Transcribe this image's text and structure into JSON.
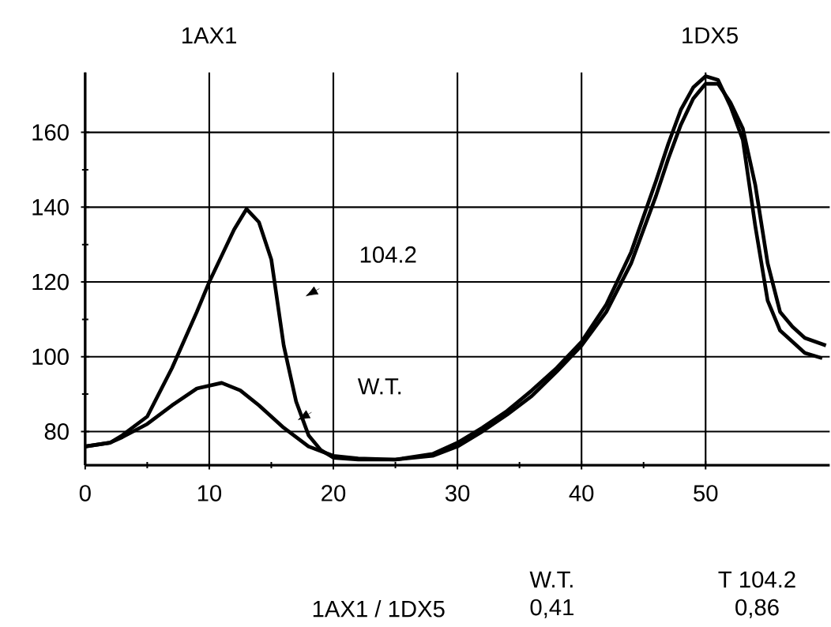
{
  "chart_data": {
    "type": "line",
    "xlim": [
      0,
      60
    ],
    "ylim": [
      71,
      176
    ],
    "xticks": [
      0,
      10,
      20,
      30,
      40,
      50
    ],
    "yticks": [
      80,
      100,
      120,
      140,
      160
    ],
    "grid": true,
    "marker": "none",
    "line_style": "solid",
    "series": [
      {
        "color": "#000000",
        "x": [
          0,
          2,
          3,
          5,
          7,
          9,
          10,
          11,
          12,
          13,
          14,
          15,
          16,
          17,
          18,
          19,
          20,
          22,
          25,
          28,
          30,
          32,
          34,
          36,
          38,
          40,
          42,
          44,
          46,
          47,
          48,
          49,
          50,
          51,
          52,
          53,
          54,
          55,
          56,
          57,
          58,
          59.4
        ],
        "values": [
          76,
          77,
          79,
          84,
          97,
          112,
          120,
          127,
          134,
          139.5,
          136,
          126,
          103,
          88,
          79,
          75,
          73,
          72.5,
          72.5,
          74,
          77,
          81,
          85.5,
          91,
          97,
          104,
          114,
          128,
          147,
          157,
          166,
          172,
          175,
          174,
          167,
          158,
          135,
          115,
          107,
          104,
          101,
          99.6
        ]
      },
      {
        "color": "#000000",
        "x": [
          0,
          2,
          3,
          5,
          7,
          9,
          11,
          12.5,
          14,
          16,
          18,
          20,
          22,
          25,
          28,
          30,
          32,
          34,
          36,
          38,
          40,
          42,
          44,
          46,
          47,
          48,
          49,
          50,
          51,
          52,
          53,
          54,
          55,
          56,
          57,
          58,
          59.7
        ],
        "values": [
          76,
          77,
          78.5,
          82,
          87,
          91.5,
          93,
          91,
          87,
          81,
          76,
          73.5,
          72.8,
          72.5,
          73.5,
          76,
          80,
          84.5,
          89.5,
          96,
          103,
          112,
          125,
          143,
          153,
          162,
          169,
          173,
          173,
          168,
          161,
          146,
          125,
          112,
          108,
          105,
          103
        ]
      }
    ],
    "annotations": [
      "1AX1",
      "1DX5",
      "104.2",
      "W.T.",
      "W.T.",
      "T 104.2",
      "1AX1 / 1DX5",
      "0,41",
      "0,86"
    ]
  }
}
